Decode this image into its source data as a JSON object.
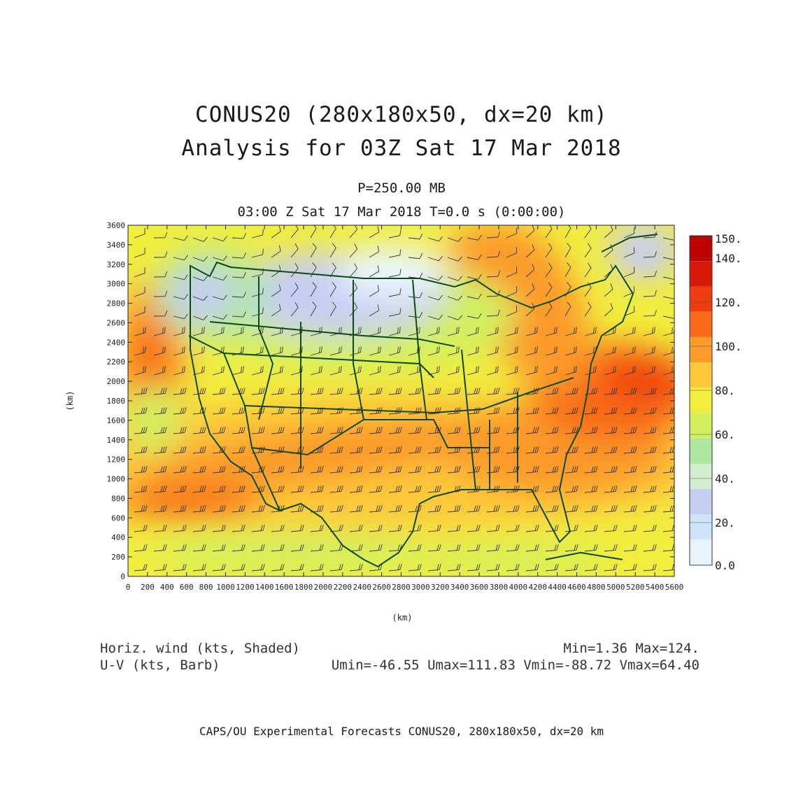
{
  "header": {
    "title_line1": "CONUS20 (280x180x50, dx=20 km)",
    "title_line2": "Analysis for 03Z Sat 17 Mar 2018",
    "level": "P=250.00 MB",
    "time": "03:00 Z Sat 17 Mar 2018    T=0.0 s (0:00:00)"
  },
  "axes": {
    "x_label": "(km)",
    "y_label": "(km)",
    "x_ticks": [
      "0",
      "200",
      "400",
      "600",
      "800",
      "1000",
      "1200",
      "1400",
      "1600",
      "1800",
      "2000",
      "2200",
      "2400",
      "2600",
      "2800",
      "3000",
      "3200",
      "3400",
      "3600",
      "3800",
      "4000",
      "4200",
      "4400",
      "4600",
      "4800",
      "5000",
      "5200",
      "5400",
      "5600"
    ],
    "y_ticks": [
      "0",
      "200",
      "400",
      "600",
      "800",
      "1000",
      "1200",
      "1400",
      "1600",
      "1800",
      "2000",
      "2200",
      "2400",
      "2600",
      "2800",
      "3000",
      "3200",
      "3400",
      "3600"
    ],
    "x_range": [
      0,
      5600
    ],
    "y_range": [
      0,
      3600
    ]
  },
  "colorbar": {
    "labels": [
      "150.",
      "140.",
      "120.",
      "100.",
      "80.",
      "60.",
      "40.",
      "20.",
      "0.0"
    ],
    "colors": [
      "#c00000",
      "#d81a08",
      "#ee3d10",
      "#f86a18",
      "#fc9a2a",
      "#fdc83a",
      "#f2ee3e",
      "#d2ef60",
      "#aee8a0",
      "#d2eed0",
      "#c6cef3",
      "#cee4f8",
      "#e8f4fb"
    ]
  },
  "footer": {
    "left_line1": "Horiz. wind (kts, Shaded)",
    "left_line2": "U-V (kts, Barb)",
    "right_line1": "Min=1.36 Max=124.",
    "right_line2": "Umin=-46.55 Umax=111.83 Vmin=-88.72 Vmax=64.40",
    "credit": "CAPS/OU Experimental Forecasts  CONUS20, 280x180x50, dx=20 km"
  }
}
